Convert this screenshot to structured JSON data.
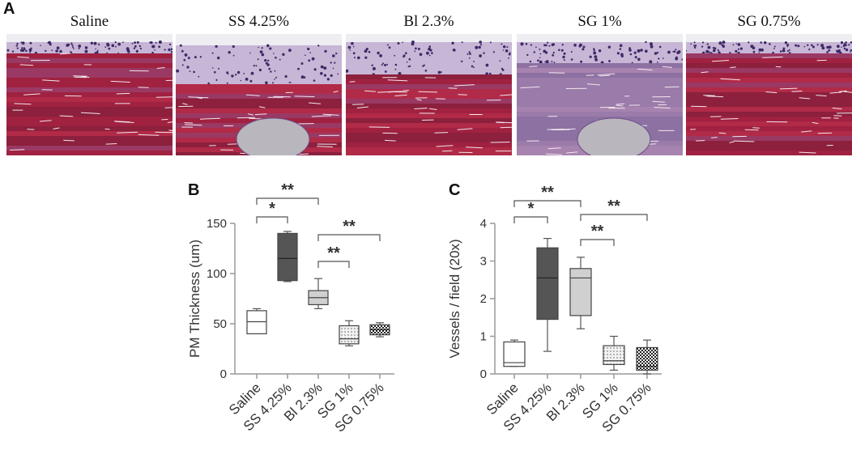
{
  "panel_labels": {
    "a": "A",
    "b": "B",
    "c": "C"
  },
  "histology": [
    {
      "title": "Saline",
      "tone": "red"
    },
    {
      "title": "SS 4.25%",
      "tone": "layered"
    },
    {
      "title": "Bl 2.3%",
      "tone": "red-layered"
    },
    {
      "title": "SG 1%",
      "tone": "pale"
    },
    {
      "title": "SG 0.75%",
      "tone": "red"
    }
  ],
  "colors": {
    "saline": "#ffffff",
    "ss": "#555555",
    "bl": "#d0d0d0",
    "sg1": "#e8e8e8",
    "sg075": "#333333",
    "axis": "#999999",
    "text": "#333333"
  },
  "chart_data": [
    {
      "type": "box",
      "panel": "B",
      "ylabel": "PM Thickness (um)",
      "ylim": [
        0,
        150
      ],
      "yticks": [
        0,
        50,
        100,
        150
      ],
      "categories": [
        "Saline",
        "SS 4.25%",
        "Bl 2.3%",
        "SG 1%",
        "SG 0.75%"
      ],
      "boxes": [
        {
          "min": 40,
          "q1": 40,
          "median": 52,
          "q3": 63,
          "max": 65
        },
        {
          "min": 92,
          "q1": 93,
          "median": 115,
          "q3": 140,
          "max": 142
        },
        {
          "min": 65,
          "q1": 69,
          "median": 76,
          "q3": 83,
          "max": 95
        },
        {
          "min": 28,
          "q1": 30,
          "median": 35,
          "q3": 48,
          "max": 53
        },
        {
          "min": 37,
          "q1": 39,
          "median": 44,
          "q3": 49,
          "max": 51
        }
      ],
      "significance": [
        {
          "from": 0,
          "to": 1,
          "label": "*"
        },
        {
          "from": 0,
          "to": 2,
          "label": "**"
        },
        {
          "from": 2,
          "to": 3,
          "label": "**"
        },
        {
          "from": 2,
          "to": 4,
          "label": "**"
        }
      ]
    },
    {
      "type": "box",
      "panel": "C",
      "ylabel": "Vessels / field (20x)",
      "ylim": [
        0,
        4
      ],
      "yticks": [
        0,
        1,
        2,
        3,
        4
      ],
      "categories": [
        "Saline",
        "SS 4.25%",
        "Bl 2.3%",
        "SG 1%",
        "SG 0.75%"
      ],
      "boxes": [
        {
          "min": 0.2,
          "q1": 0.2,
          "median": 0.3,
          "q3": 0.85,
          "max": 0.9
        },
        {
          "min": 0.6,
          "q1": 1.45,
          "median": 2.55,
          "q3": 3.35,
          "max": 3.6
        },
        {
          "min": 1.2,
          "q1": 1.55,
          "median": 2.55,
          "q3": 2.8,
          "max": 3.1
        },
        {
          "min": 0.1,
          "q1": 0.25,
          "median": 0.35,
          "q3": 0.75,
          "max": 1.0
        },
        {
          "min": 0.0,
          "q1": 0.1,
          "median": 0.2,
          "q3": 0.7,
          "max": 0.9
        }
      ],
      "significance": [
        {
          "from": 0,
          "to": 1,
          "label": "*"
        },
        {
          "from": 0,
          "to": 2,
          "label": "**"
        },
        {
          "from": 2,
          "to": 3,
          "label": "**"
        },
        {
          "from": 2,
          "to": 4,
          "label": "**"
        }
      ]
    }
  ]
}
